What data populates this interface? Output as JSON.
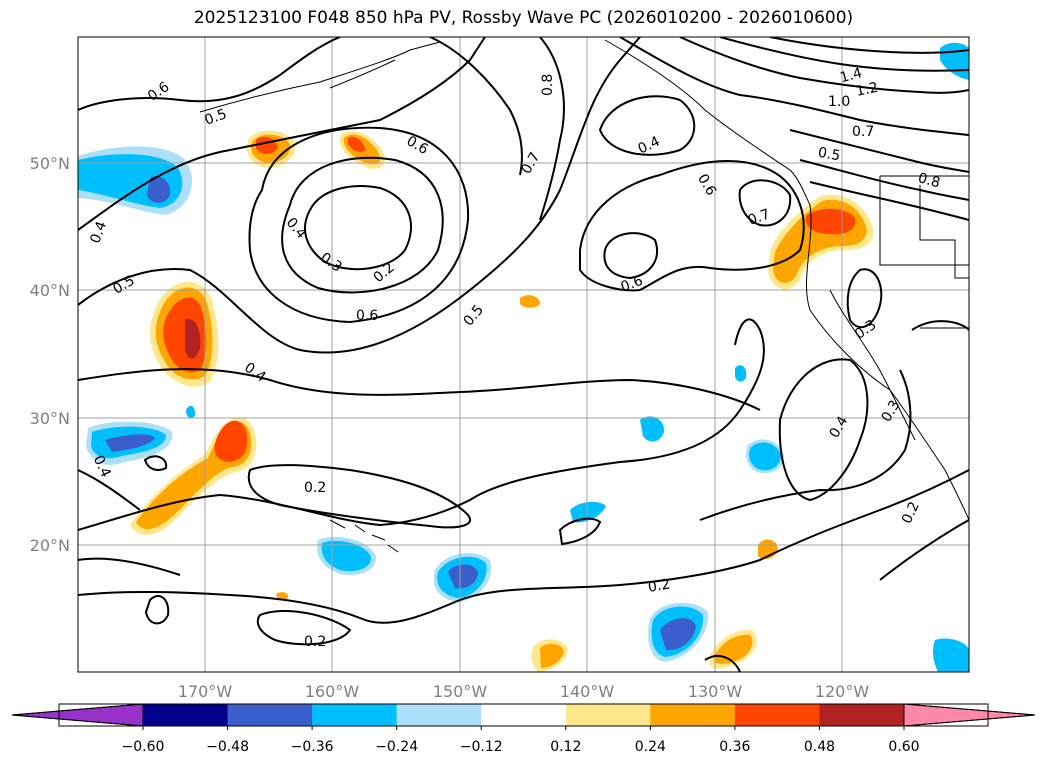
{
  "title": "2025123100 F048 850 hPa PV, Rossby Wave PC (2026010200 - 2026010600)",
  "map": {
    "lon_labels": [
      "170°W",
      "160°W",
      "150°W",
      "140°W",
      "130°W",
      "120°W"
    ],
    "lat_labels": [
      "50°N",
      "40°N",
      "30°N",
      "20°N"
    ],
    "contour_labels": [
      "0.6",
      "0.5",
      "0.6",
      "0.8",
      "0.4",
      "1.4",
      "1.2",
      "1.0",
      "0.7",
      "0.5",
      "0.8",
      "0.4",
      "0.3",
      "0.2",
      "0.7",
      "0.6",
      "0.7",
      "0.6",
      "0.4",
      "0.5",
      "0.6",
      "0.5",
      "0.4",
      "0.3",
      "0.4",
      "0.3",
      "0.4",
      "0.2",
      "0.2",
      "0.2",
      "0.2"
    ]
  },
  "colorbar": {
    "tick_labels": [
      "−0.60",
      "−0.48",
      "−0.36",
      "−0.24",
      "−0.12",
      "0.12",
      "0.24",
      "0.36",
      "0.48",
      "0.60"
    ],
    "colors": [
      "#9932CC",
      "#00008B",
      "#3A5FCD",
      "#00BFFF",
      "#ADE0F8",
      "#FFFFFF",
      "#FFE88C",
      "#FFA500",
      "#FF4500",
      "#B22222",
      "#FF88AA"
    ]
  }
}
